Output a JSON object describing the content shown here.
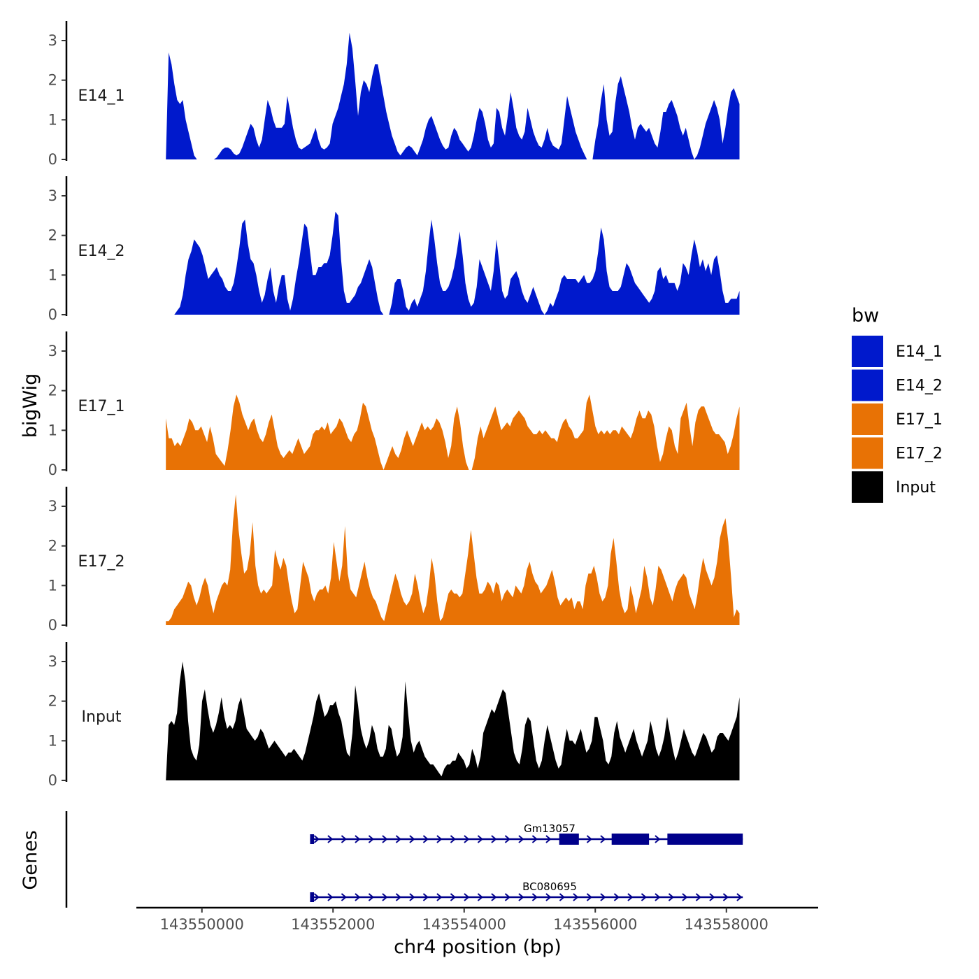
{
  "chart_data": {
    "type": "area",
    "chromosome": "chr4",
    "xlabel": "chr4 position (bp)",
    "ylabel": "bigWig",
    "genes_label": "Genes",
    "xlim": [
      143549000,
      143559400
    ],
    "x_data_start": 143549450,
    "x_data_end": 143558200,
    "x_ticks": [
      143550000,
      143552000,
      143554000,
      143556000,
      143558000
    ],
    "x_tick_labels": [
      "143550000",
      "143552000",
      "143554000",
      "143556000",
      "143558000"
    ],
    "ylim": [
      0,
      3.4
    ],
    "y_ticks": [
      0,
      1,
      2,
      3
    ],
    "y_tick_labels": [
      "0",
      "1",
      "2",
      "3"
    ],
    "legend": {
      "title": "bw",
      "position": "right",
      "entries": [
        {
          "name": "E14_1",
          "color": "#0019CC"
        },
        {
          "name": "E14_2",
          "color": "#0019CC"
        },
        {
          "name": "E17_1",
          "color": "#E87205"
        },
        {
          "name": "E17_2",
          "color": "#E87205"
        },
        {
          "name": "Input",
          "color": "#000000"
        }
      ]
    },
    "series": [
      {
        "name": "E14_1",
        "color": "#0019CC",
        "values": [
          0,
          2.7,
          2.4,
          1.9,
          1.5,
          1.4,
          1.5,
          1.0,
          0.7,
          0.4,
          0.1,
          0,
          0,
          0,
          0,
          0,
          0,
          0,
          0.05,
          0.15,
          0.25,
          0.3,
          0.3,
          0.25,
          0.15,
          0.1,
          0.15,
          0.3,
          0.5,
          0.7,
          0.9,
          0.8,
          0.5,
          0.3,
          0.5,
          1.0,
          1.5,
          1.3,
          1.0,
          0.8,
          0.8,
          0.8,
          0.9,
          1.6,
          1.2,
          0.8,
          0.5,
          0.3,
          0.25,
          0.3,
          0.35,
          0.4,
          0.6,
          0.8,
          0.5,
          0.3,
          0.25,
          0.3,
          0.4,
          0.9,
          1.1,
          1.3,
          1.6,
          1.9,
          2.4,
          3.2,
          2.8,
          2.0,
          1.1,
          1.7,
          2.0,
          1.9,
          1.7,
          2.1,
          2.4,
          2.4,
          2.0,
          1.6,
          1.2,
          0.9,
          0.6,
          0.4,
          0.2,
          0.1,
          0.2,
          0.3,
          0.35,
          0.3,
          0.2,
          0.1,
          0.3,
          0.5,
          0.8,
          1.0,
          1.1,
          0.9,
          0.7,
          0.5,
          0.35,
          0.25,
          0.3,
          0.6,
          0.8,
          0.7,
          0.5,
          0.4,
          0.3,
          0.2,
          0.3,
          0.6,
          1.0,
          1.3,
          1.2,
          0.9,
          0.5,
          0.3,
          0.4,
          1.3,
          1.2,
          0.8,
          0.6,
          1.1,
          1.7,
          1.3,
          0.8,
          0.6,
          0.5,
          0.7,
          1.3,
          1.0,
          0.7,
          0.5,
          0.35,
          0.3,
          0.5,
          0.8,
          0.5,
          0.35,
          0.3,
          0.25,
          0.4,
          1.0,
          1.6,
          1.3,
          1.0,
          0.7,
          0.5,
          0.3,
          0.15,
          0,
          0,
          0,
          0.5,
          0.9,
          1.5,
          1.9,
          1.0,
          0.6,
          0.7,
          1.4,
          1.9,
          2.1,
          1.8,
          1.5,
          1.2,
          0.8,
          0.5,
          0.8,
          0.9,
          0.8,
          0.7,
          0.8,
          0.6,
          0.4,
          0.3,
          0.7,
          1.2,
          1.2,
          1.4,
          1.5,
          1.3,
          1.1,
          0.8,
          0.6,
          0.8,
          0.5,
          0.2,
          0,
          0.1,
          0.3,
          0.6,
          0.9,
          1.1,
          1.3,
          1.5,
          1.3,
          1.0,
          0.4,
          0.8,
          1.3,
          1.7,
          1.8,
          1.6,
          1.4
        ]
      },
      {
        "name": "E14_2",
        "color": "#0019CC",
        "values": [
          0,
          0,
          0,
          0,
          0.1,
          0.2,
          0.5,
          1.0,
          1.4,
          1.6,
          1.9,
          1.8,
          1.7,
          1.5,
          1.2,
          0.9,
          1.0,
          1.1,
          1.2,
          1.0,
          0.9,
          0.7,
          0.6,
          0.6,
          0.8,
          1.2,
          1.7,
          2.3,
          2.4,
          1.8,
          1.4,
          1.3,
          1.0,
          0.6,
          0.3,
          0.5,
          0.9,
          1.2,
          0.6,
          0.3,
          0.7,
          1.0,
          1.0,
          0.4,
          0.1,
          0.4,
          0.9,
          1.3,
          1.8,
          2.3,
          2.2,
          1.6,
          1.0,
          1.0,
          1.2,
          1.2,
          1.3,
          1.3,
          1.5,
          2.0,
          2.6,
          2.5,
          1.4,
          0.6,
          0.3,
          0.3,
          0.4,
          0.5,
          0.7,
          0.8,
          1.0,
          1.2,
          1.4,
          1.2,
          0.8,
          0.4,
          0.1,
          0,
          0,
          0,
          0.3,
          0.8,
          0.9,
          0.9,
          0.6,
          0.2,
          0.1,
          0.3,
          0.4,
          0.2,
          0.4,
          0.6,
          1.1,
          1.8,
          2.4,
          1.9,
          1.3,
          0.8,
          0.6,
          0.6,
          0.7,
          0.9,
          1.2,
          1.6,
          2.1,
          1.5,
          0.8,
          0.4,
          0.2,
          0.3,
          0.7,
          1.4,
          1.2,
          1.0,
          0.8,
          0.6,
          1.1,
          1.9,
          1.3,
          0.6,
          0.4,
          0.5,
          0.9,
          1.0,
          1.1,
          0.9,
          0.6,
          0.4,
          0.3,
          0.5,
          0.7,
          0.5,
          0.3,
          0.1,
          0,
          0.1,
          0.3,
          0.2,
          0.4,
          0.6,
          0.9,
          1.0,
          0.9,
          0.9,
          0.9,
          0.9,
          0.8,
          0.9,
          1.0,
          0.8,
          0.8,
          0.9,
          1.1,
          1.6,
          2.2,
          1.9,
          1.1,
          0.7,
          0.6,
          0.6,
          0.6,
          0.7,
          1.0,
          1.3,
          1.2,
          1.0,
          0.8,
          0.7,
          0.6,
          0.5,
          0.4,
          0.3,
          0.4,
          0.6,
          1.1,
          1.2,
          0.9,
          1.0,
          0.8,
          0.8,
          0.8,
          0.6,
          0.8,
          1.3,
          1.2,
          1.0,
          1.5,
          1.9,
          1.6,
          1.2,
          1.4,
          1.1,
          1.3,
          1.0,
          1.4,
          1.5,
          1.1,
          0.6,
          0.3,
          0.3,
          0.4,
          0.4,
          0.4,
          0.6
        ]
      },
      {
        "name": "E17_1",
        "color": "#E87205",
        "values": [
          1.3,
          0.8,
          0.8,
          0.6,
          0.7,
          0.6,
          0.8,
          1.0,
          1.3,
          1.2,
          1.0,
          1.0,
          1.1,
          0.9,
          0.7,
          1.1,
          0.8,
          0.4,
          0.3,
          0.2,
          0.1,
          0.5,
          1.0,
          1.6,
          1.9,
          1.7,
          1.4,
          1.2,
          1.0,
          1.2,
          1.3,
          1.0,
          0.8,
          0.7,
          0.9,
          1.2,
          1.4,
          1.0,
          0.6,
          0.4,
          0.3,
          0.4,
          0.5,
          0.4,
          0.6,
          0.8,
          0.6,
          0.4,
          0.5,
          0.6,
          0.9,
          1.0,
          1.0,
          1.1,
          1.0,
          1.2,
          0.9,
          1.0,
          1.1,
          1.3,
          1.2,
          1.0,
          0.8,
          0.7,
          0.9,
          1.0,
          1.3,
          1.7,
          1.6,
          1.3,
          1.0,
          0.8,
          0.5,
          0.2,
          0,
          0.2,
          0.4,
          0.6,
          0.4,
          0.3,
          0.5,
          0.8,
          1.0,
          0.8,
          0.6,
          0.8,
          1.0,
          1.2,
          1.0,
          1.1,
          1.0,
          1.1,
          1.3,
          1.2,
          1.0,
          0.7,
          0.3,
          0.6,
          1.3,
          1.6,
          1.2,
          0.6,
          0.2,
          0,
          0,
          0.3,
          0.8,
          1.1,
          0.8,
          1.0,
          1.2,
          1.4,
          1.6,
          1.3,
          1.0,
          1.1,
          1.2,
          1.1,
          1.3,
          1.4,
          1.5,
          1.4,
          1.3,
          1.1,
          1.0,
          0.9,
          0.9,
          1.0,
          0.9,
          1.0,
          0.9,
          0.8,
          0.8,
          0.7,
          1.0,
          1.2,
          1.3,
          1.1,
          1.0,
          0.8,
          0.8,
          0.9,
          1.0,
          1.7,
          1.9,
          1.5,
          1.1,
          0.9,
          1.0,
          0.9,
          1.0,
          0.9,
          1.0,
          1.0,
          0.9,
          1.1,
          1.0,
          0.9,
          0.8,
          1.0,
          1.3,
          1.5,
          1.3,
          1.3,
          1.5,
          1.4,
          1.1,
          0.6,
          0.2,
          0.4,
          0.8,
          1.1,
          1.0,
          0.6,
          0.4,
          1.3,
          1.5,
          1.7,
          1.1,
          0.6,
          1.2,
          1.5,
          1.6,
          1.6,
          1.4,
          1.2,
          1.0,
          0.9,
          0.9,
          0.8,
          0.7,
          0.4,
          0.6,
          0.9,
          1.3,
          1.6
        ]
      },
      {
        "name": "E17_2",
        "color": "#E87205",
        "values": [
          0.1,
          0.1,
          0.2,
          0.4,
          0.5,
          0.6,
          0.7,
          0.9,
          1.1,
          1.0,
          0.7,
          0.5,
          0.7,
          1.0,
          1.2,
          1.0,
          0.6,
          0.3,
          0.6,
          0.8,
          1.0,
          1.1,
          1.0,
          1.4,
          2.6,
          3.3,
          2.4,
          1.8,
          1.3,
          1.4,
          1.8,
          2.6,
          1.5,
          1.0,
          0.8,
          0.9,
          0.8,
          0.9,
          1.0,
          1.9,
          1.6,
          1.4,
          1.7,
          1.5,
          1.0,
          0.6,
          0.3,
          0.4,
          1.0,
          1.6,
          1.4,
          1.2,
          0.8,
          0.6,
          0.8,
          0.9,
          0.9,
          1.0,
          0.8,
          1.2,
          2.1,
          1.6,
          1.1,
          1.5,
          2.5,
          1.3,
          0.9,
          0.8,
          0.7,
          1.0,
          1.3,
          1.6,
          1.2,
          0.9,
          0.7,
          0.6,
          0.4,
          0.2,
          0.1,
          0.4,
          0.7,
          1.0,
          1.3,
          1.1,
          0.8,
          0.6,
          0.5,
          0.6,
          0.8,
          1.3,
          1.0,
          0.6,
          0.3,
          0.5,
          1.0,
          1.7,
          1.3,
          0.6,
          0.1,
          0.2,
          0.5,
          0.8,
          0.9,
          0.8,
          0.8,
          0.7,
          0.8,
          1.3,
          1.8,
          2.4,
          1.8,
          1.2,
          0.8,
          0.8,
          0.9,
          1.1,
          1.0,
          0.8,
          1.1,
          1.0,
          0.6,
          0.8,
          0.9,
          0.8,
          0.7,
          1.0,
          0.9,
          0.8,
          1.0,
          1.4,
          1.6,
          1.3,
          1.1,
          1.0,
          0.8,
          0.9,
          1.0,
          1.2,
          1.4,
          1.1,
          0.7,
          0.5,
          0.6,
          0.7,
          0.6,
          0.7,
          0.4,
          0.6,
          0.6,
          0.4,
          1.0,
          1.3,
          1.3,
          1.5,
          1.2,
          0.8,
          0.6,
          0.7,
          1.0,
          1.8,
          2.2,
          1.6,
          0.9,
          0.5,
          0.3,
          0.4,
          1.0,
          0.7,
          0.3,
          0.6,
          0.9,
          1.5,
          1.2,
          0.7,
          0.5,
          0.9,
          1.5,
          1.4,
          1.2,
          1.0,
          0.8,
          0.6,
          0.9,
          1.1,
          1.2,
          1.3,
          1.2,
          0.8,
          0.6,
          0.4,
          0.8,
          1.3,
          1.7,
          1.4,
          1.2,
          1.0,
          1.2,
          1.6,
          2.2,
          2.5,
          2.7,
          2.1,
          1.2,
          0.2,
          0.4,
          0.3
        ]
      },
      {
        "name": "Input",
        "color": "#000000",
        "values": [
          0,
          1.4,
          1.5,
          1.4,
          1.7,
          2.5,
          3.0,
          2.5,
          1.5,
          0.8,
          0.6,
          0.5,
          0.9,
          2.0,
          2.3,
          1.8,
          1.4,
          1.2,
          1.4,
          1.7,
          2.1,
          1.6,
          1.3,
          1.4,
          1.3,
          1.5,
          1.9,
          2.1,
          1.7,
          1.3,
          1.2,
          1.1,
          1.0,
          1.1,
          1.3,
          1.2,
          1.0,
          0.8,
          0.9,
          1.0,
          0.9,
          0.8,
          0.7,
          0.6,
          0.7,
          0.7,
          0.8,
          0.7,
          0.6,
          0.5,
          0.7,
          1.0,
          1.3,
          1.6,
          2.0,
          2.2,
          1.9,
          1.6,
          1.7,
          1.9,
          1.9,
          2.0,
          1.7,
          1.5,
          1.1,
          0.7,
          0.6,
          1.2,
          2.4,
          1.9,
          1.3,
          1.0,
          0.8,
          1.0,
          1.4,
          1.2,
          0.8,
          0.6,
          0.6,
          0.8,
          1.4,
          1.3,
          0.9,
          0.6,
          0.7,
          1.1,
          2.5,
          1.7,
          1.0,
          0.7,
          0.9,
          1.0,
          0.8,
          0.6,
          0.5,
          0.4,
          0.4,
          0.3,
          0.2,
          0.1,
          0.3,
          0.4,
          0.4,
          0.5,
          0.5,
          0.7,
          0.6,
          0.5,
          0.3,
          0.4,
          0.8,
          0.6,
          0.3,
          0.6,
          1.2,
          1.4,
          1.6,
          1.8,
          1.7,
          1.9,
          2.1,
          2.3,
          2.2,
          1.7,
          1.2,
          0.7,
          0.5,
          0.4,
          0.8,
          1.4,
          1.6,
          1.5,
          1.0,
          0.5,
          0.3,
          0.5,
          1.0,
          1.4,
          1.1,
          0.8,
          0.5,
          0.3,
          0.4,
          0.9,
          1.3,
          1.0,
          1.0,
          0.9,
          1.1,
          1.3,
          1.0,
          0.7,
          0.8,
          1.0,
          1.6,
          1.6,
          1.3,
          1.0,
          0.5,
          0.4,
          0.6,
          1.2,
          1.5,
          1.1,
          0.9,
          0.7,
          0.9,
          1.1,
          1.3,
          1.0,
          0.8,
          0.6,
          0.8,
          1.0,
          1.5,
          1.2,
          0.8,
          0.6,
          0.8,
          1.1,
          1.6,
          1.2,
          0.8,
          0.5,
          0.7,
          1.0,
          1.3,
          1.1,
          0.9,
          0.7,
          0.6,
          0.8,
          1.0,
          1.2,
          1.1,
          0.9,
          0.7,
          0.8,
          1.1,
          1.2,
          1.2,
          1.1,
          1.0,
          1.2,
          1.4,
          1.6,
          2.1
        ]
      }
    ],
    "genes": [
      {
        "name": "Gm13057",
        "strand": "+",
        "start": 143551650,
        "end": 143558250,
        "exons": [
          [
            143551650,
            143551710
          ],
          [
            143555450,
            143555750
          ],
          [
            143556250,
            143556820
          ],
          [
            143557100,
            143558250
          ]
        ]
      },
      {
        "name": "BC080695",
        "strand": "+",
        "start": 143551650,
        "end": 143558250,
        "exons": [
          [
            143551650,
            143551710
          ]
        ]
      }
    ]
  }
}
